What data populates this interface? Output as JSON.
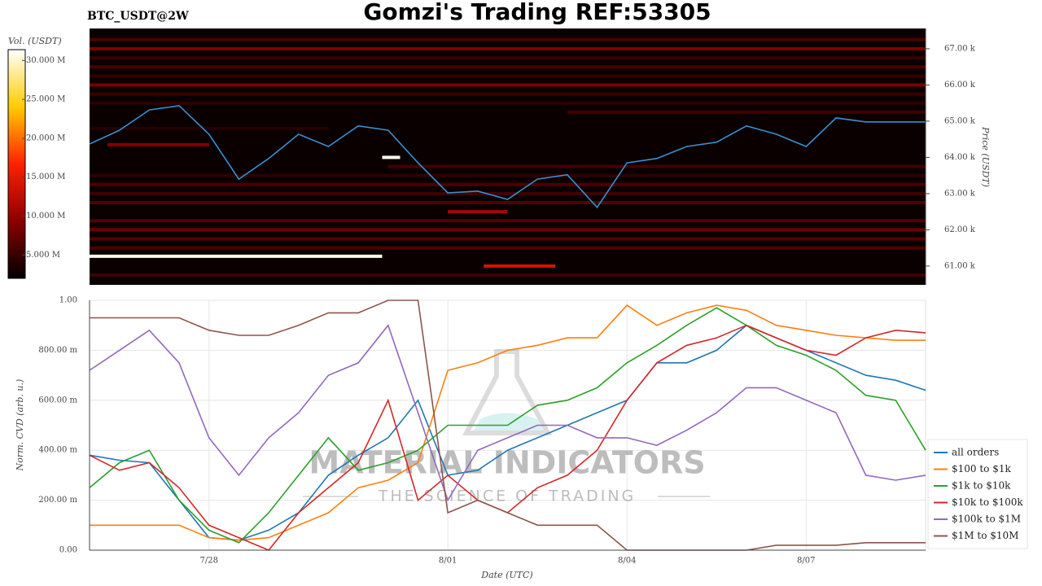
{
  "title": "Gomzi's Trading REF:53305",
  "chart_data": [
    {
      "type": "heatmap",
      "title": "BTC_USDT@2W",
      "ylabel": "Price (USDT)",
      "xlim": [
        0,
        14
      ],
      "ylim": [
        60480,
        67560
      ],
      "yticks": [
        {
          "value": 61000,
          "label": "61.00 k"
        },
        {
          "value": 62000,
          "label": "62.00 k"
        },
        {
          "value": 63000,
          "label": "63.00 k"
        },
        {
          "value": 64000,
          "label": "64.00 k"
        },
        {
          "value": 65000,
          "label": "65.00 k"
        },
        {
          "value": 66000,
          "label": "66.00 k"
        },
        {
          "value": 67000,
          "label": "67.00 k"
        }
      ],
      "x": [
        0,
        0.5,
        1,
        1.5,
        2,
        2.5,
        3,
        3.5,
        4,
        4.5,
        5,
        5.5,
        6,
        6.5,
        7,
        7.5,
        8,
        8.5,
        9,
        9.5,
        10,
        10.5,
        11,
        11.5,
        12,
        12.5,
        13,
        13.5,
        14
      ],
      "values": [
        64370,
        64750,
        65310,
        65430,
        64640,
        63400,
        63970,
        64640,
        64300,
        64870,
        64750,
        63850,
        63020,
        63070,
        62840,
        63400,
        63520,
        62620,
        63850,
        63970,
        64300,
        64420,
        64870,
        64640,
        64300,
        65090,
        64980,
        64980,
        64980
      ],
      "line_color": "#3a8fd0",
      "colorscale": [
        "#000000",
        "#8b0000",
        "#ff2000",
        "#ffcc00",
        "#ffffff"
      ],
      "colorbar": {
        "title": "Vol. (USDT)",
        "lim": [
          2000000,
          31400000
        ],
        "ticks": [
          {
            "value": 5000000,
            "label": "5.000 M"
          },
          {
            "value": 10000000,
            "label": "10.000 M"
          },
          {
            "value": 15000000,
            "label": "15.000 M"
          },
          {
            "value": 20000000,
            "label": "20.000 M"
          },
          {
            "value": 25000000,
            "label": "25.000 M"
          },
          {
            "value": 30000000,
            "label": "30.000 M"
          }
        ]
      },
      "levels": {
        "price": [
          67250,
          67000,
          66750,
          66500,
          66250,
          66000,
          65750,
          65500,
          65250,
          64800,
          64350,
          64000,
          63750,
          63500,
          63250,
          63000,
          62750,
          62500,
          62250,
          62000,
          61750,
          61500,
          61270,
          61000,
          60750
        ],
        "start": [
          0,
          0,
          0,
          0,
          0,
          0,
          0,
          0,
          8,
          0,
          0.3,
          4.9,
          5,
          0,
          0,
          0,
          0,
          6,
          0,
          0,
          0,
          0,
          0,
          6.6,
          0
        ],
        "end": [
          14,
          14,
          14,
          14,
          14,
          14,
          14,
          14,
          14,
          4,
          2,
          5.2,
          14,
          14,
          14,
          14,
          14,
          7,
          14,
          14,
          14,
          14,
          4.9,
          7.8,
          14
        ],
        "volume": [
          6000000,
          9000000,
          5000000,
          6000000,
          4500000,
          8500000,
          5000000,
          4500000,
          5500000,
          4000000,
          9000000,
          31000000,
          5500000,
          4500000,
          6000000,
          5500000,
          6500000,
          11000000,
          6500000,
          8000000,
          6500000,
          6000000,
          31000000,
          14000000,
          5500000
        ]
      }
    },
    {
      "type": "line",
      "xlabel": "Date (UTC)",
      "ylabel": "Norm. CVD (arb. u.)",
      "xlim": [
        0,
        14
      ],
      "ylim": [
        0,
        1
      ],
      "xticks": [
        {
          "value": 2,
          "label": "7/28"
        },
        {
          "value": 6,
          "label": "8/01"
        },
        {
          "value": 9,
          "label": "8/04"
        },
        {
          "value": 12,
          "label": "8/07"
        }
      ],
      "yticks": [
        {
          "value": 0,
          "label": "0.00"
        },
        {
          "value": 0.2,
          "label": "200.00 m"
        },
        {
          "value": 0.4,
          "label": "400.00 m"
        },
        {
          "value": 0.6,
          "label": "600.00 m"
        },
        {
          "value": 0.8,
          "label": "800.00 m"
        },
        {
          "value": 1,
          "label": "1.00"
        }
      ],
      "grid": true,
      "watermark": {
        "title": "MATERIAL INDICATORS",
        "subtitle": "THE SCIENCE OF TRADING"
      },
      "x": [
        0,
        0.5,
        1,
        1.5,
        2,
        2.5,
        3,
        3.5,
        4,
        4.5,
        5,
        5.5,
        6,
        6.5,
        7,
        7.5,
        8,
        8.5,
        9,
        9.5,
        10,
        10.5,
        11,
        11.5,
        12,
        12.5,
        13,
        13.5,
        14
      ],
      "series": [
        {
          "name": "all orders",
          "color": "#1f77b4",
          "values": [
            0.38,
            0.36,
            0.35,
            0.2,
            0.05,
            0.04,
            0.08,
            0.15,
            0.3,
            0.38,
            0.45,
            0.6,
            0.3,
            0.32,
            0.4,
            0.45,
            0.5,
            0.55,
            0.6,
            0.75,
            0.75,
            0.8,
            0.9,
            0.85,
            0.8,
            0.75,
            0.7,
            0.68,
            0.64
          ]
        },
        {
          "name": "$100 to $1k",
          "color": "#ff7f0e",
          "values": [
            0.1,
            0.1,
            0.1,
            0.1,
            0.05,
            0.04,
            0.05,
            0.1,
            0.15,
            0.25,
            0.28,
            0.35,
            0.72,
            0.75,
            0.8,
            0.82,
            0.85,
            0.85,
            0.98,
            0.9,
            0.95,
            0.98,
            0.96,
            0.9,
            0.88,
            0.86,
            0.85,
            0.84,
            0.84
          ]
        },
        {
          "name": "$1k to $10k",
          "color": "#2ca02c",
          "values": [
            0.25,
            0.35,
            0.4,
            0.2,
            0.08,
            0.03,
            0.15,
            0.3,
            0.45,
            0.32,
            0.35,
            0.4,
            0.5,
            0.5,
            0.5,
            0.58,
            0.6,
            0.65,
            0.75,
            0.82,
            0.9,
            0.97,
            0.9,
            0.82,
            0.78,
            0.72,
            0.62,
            0.6,
            0.4
          ]
        },
        {
          "name": "$10k to $100k",
          "color": "#d62728",
          "values": [
            0.38,
            0.32,
            0.35,
            0.25,
            0.1,
            0.05,
            0.0,
            0.15,
            0.25,
            0.35,
            0.6,
            0.2,
            0.3,
            0.2,
            0.15,
            0.25,
            0.3,
            0.4,
            0.6,
            0.75,
            0.82,
            0.85,
            0.9,
            0.85,
            0.8,
            0.78,
            0.85,
            0.88,
            0.87
          ]
        },
        {
          "name": "$100k to $1M",
          "color": "#9467bd",
          "values": [
            0.72,
            0.8,
            0.88,
            0.75,
            0.45,
            0.3,
            0.45,
            0.55,
            0.7,
            0.75,
            0.9,
            0.55,
            0.2,
            0.4,
            0.45,
            0.5,
            0.5,
            0.45,
            0.45,
            0.42,
            0.48,
            0.55,
            0.65,
            0.65,
            0.6,
            0.55,
            0.3,
            0.28,
            0.3
          ]
        },
        {
          "name": "$1M to $10M",
          "color": "#8c564b",
          "values": [
            0.93,
            0.93,
            0.93,
            0.93,
            0.88,
            0.86,
            0.86,
            0.9,
            0.95,
            0.95,
            1,
            1,
            0.15,
            0.2,
            0.15,
            0.1,
            0.1,
            0.1,
            0,
            0,
            0,
            0,
            0,
            0.02,
            0.02,
            0.02,
            0.03,
            0.03,
            0.03
          ]
        }
      ]
    }
  ]
}
